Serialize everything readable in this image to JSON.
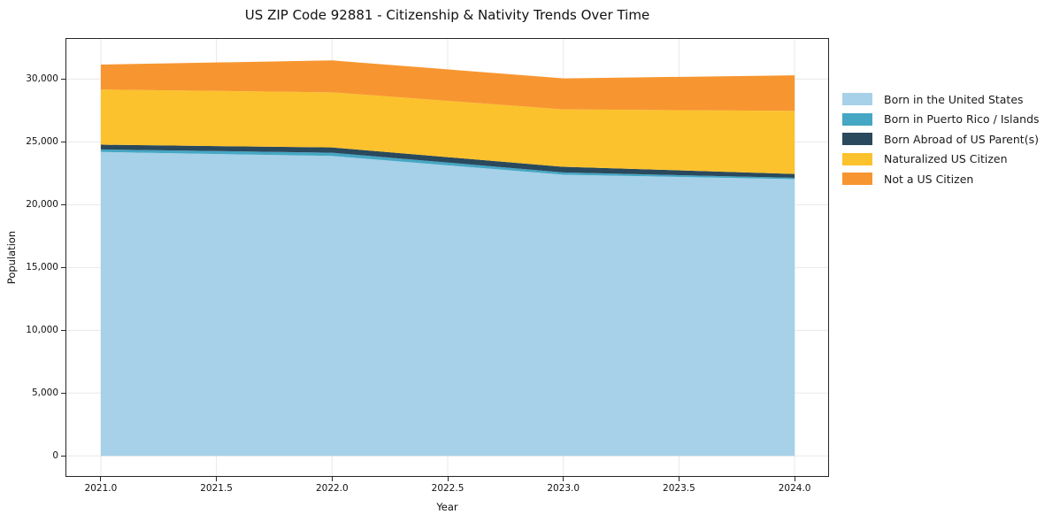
{
  "title": "US ZIP Code 92881 - Citizenship & Nativity Trends Over Time",
  "axes": {
    "xlabel": "Year",
    "ylabel": "Population",
    "x_tick_labels": [
      "2021.0",
      "2021.5",
      "2022.0",
      "2022.5",
      "2023.0",
      "2023.5",
      "2024.0"
    ],
    "y_tick_labels": [
      "0",
      "5,000",
      "10,000",
      "15,000",
      "20,000",
      "25,000",
      "30,000"
    ]
  },
  "colors": {
    "spine": "#262626",
    "grid": "#e8e8e8",
    "background": "#ffffff",
    "text": "#111111"
  },
  "legend": {
    "position": "right"
  },
  "chart_data": {
    "type": "area",
    "stacked": true,
    "title": "US ZIP Code 92881 - Citizenship & Nativity Trends Over Time",
    "xlabel": "Year",
    "ylabel": "Population",
    "x": [
      2021,
      2022,
      2023,
      2024
    ],
    "x_tick_values": [
      2021.0,
      2021.5,
      2022.0,
      2022.5,
      2023.0,
      2023.5,
      2024.0
    ],
    "y_tick_values": [
      0,
      5000,
      10000,
      15000,
      20000,
      25000,
      30000
    ],
    "xlim": [
      2020.851,
      2024.145
    ],
    "ylim": [
      -1600,
      33200
    ],
    "grid": true,
    "legend_position": "right",
    "series": [
      {
        "name": "Born in the United States",
        "color": "#a6d1e8",
        "values": [
          24200,
          23880,
          22390,
          22030
        ]
      },
      {
        "name": "Born in Puerto Rico / Islands",
        "color": "#45a7c4",
        "values": [
          200,
          260,
          180,
          110
        ]
      },
      {
        "name": "Born Abroad of US Parent(s)",
        "color": "#2a495c",
        "values": [
          380,
          420,
          450,
          310
        ]
      },
      {
        "name": "Naturalized US Citizen",
        "color": "#fcc22d",
        "values": [
          4390,
          4390,
          4570,
          5020
        ]
      },
      {
        "name": "Not a US Citizen",
        "color": "#f79630",
        "values": [
          1990,
          2540,
          2470,
          2830
        ]
      }
    ],
    "stacked_totals": [
      31160,
      31490,
      30060,
      30300
    ]
  }
}
